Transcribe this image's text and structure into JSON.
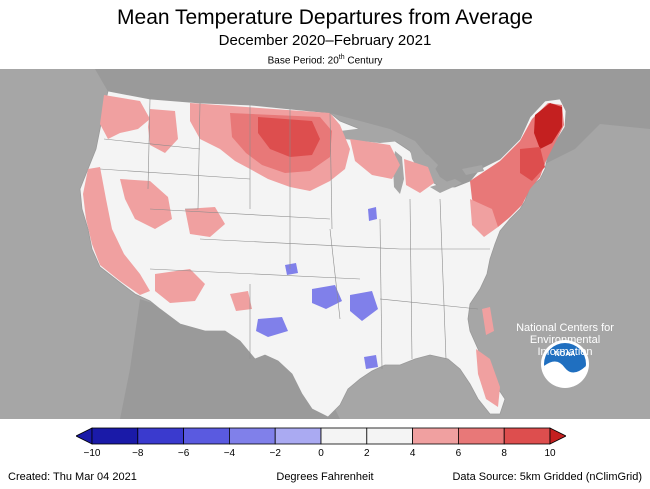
{
  "title": "Mean Temperature Departures from Average",
  "subtitle": "December 2020–February 2021",
  "base_period_prefix": "Base Period: 20",
  "base_period_sup": "th",
  "base_period_suffix": " Century",
  "noaa_logo_text": "NOAA",
  "agency_lines": [
    "National Centers for",
    "Environmental",
    "Information"
  ],
  "legend": {
    "ticks": [
      "−10",
      "−8",
      "−6",
      "−4",
      "−2",
      "0",
      "2",
      "4",
      "6",
      "8",
      "10"
    ],
    "colors": [
      "#1a1aa8",
      "#3a3ace",
      "#5a5ae0",
      "#8080ea",
      "#aaaaf2",
      "#f4f4f4",
      "#f4f4f4",
      "#f0a0a0",
      "#e87878",
      "#dd4e4e",
      "#c42020"
    ],
    "unit": "Degrees Fahrenheit"
  },
  "footer": {
    "created": "Created: Thu Mar 04 2021",
    "source": "Data Source: 5km Gridded (nClimGrid)"
  },
  "colors": {
    "ocean": "#a6a6a6",
    "land": "#f4f4f4",
    "warm_light": "#f0a0a0",
    "warm_mid": "#e87878",
    "warm_strong": "#dd4e4e",
    "warm_max": "#c42020",
    "cool": "#8080ea",
    "noaa_blue": "#1f6fc0"
  }
}
